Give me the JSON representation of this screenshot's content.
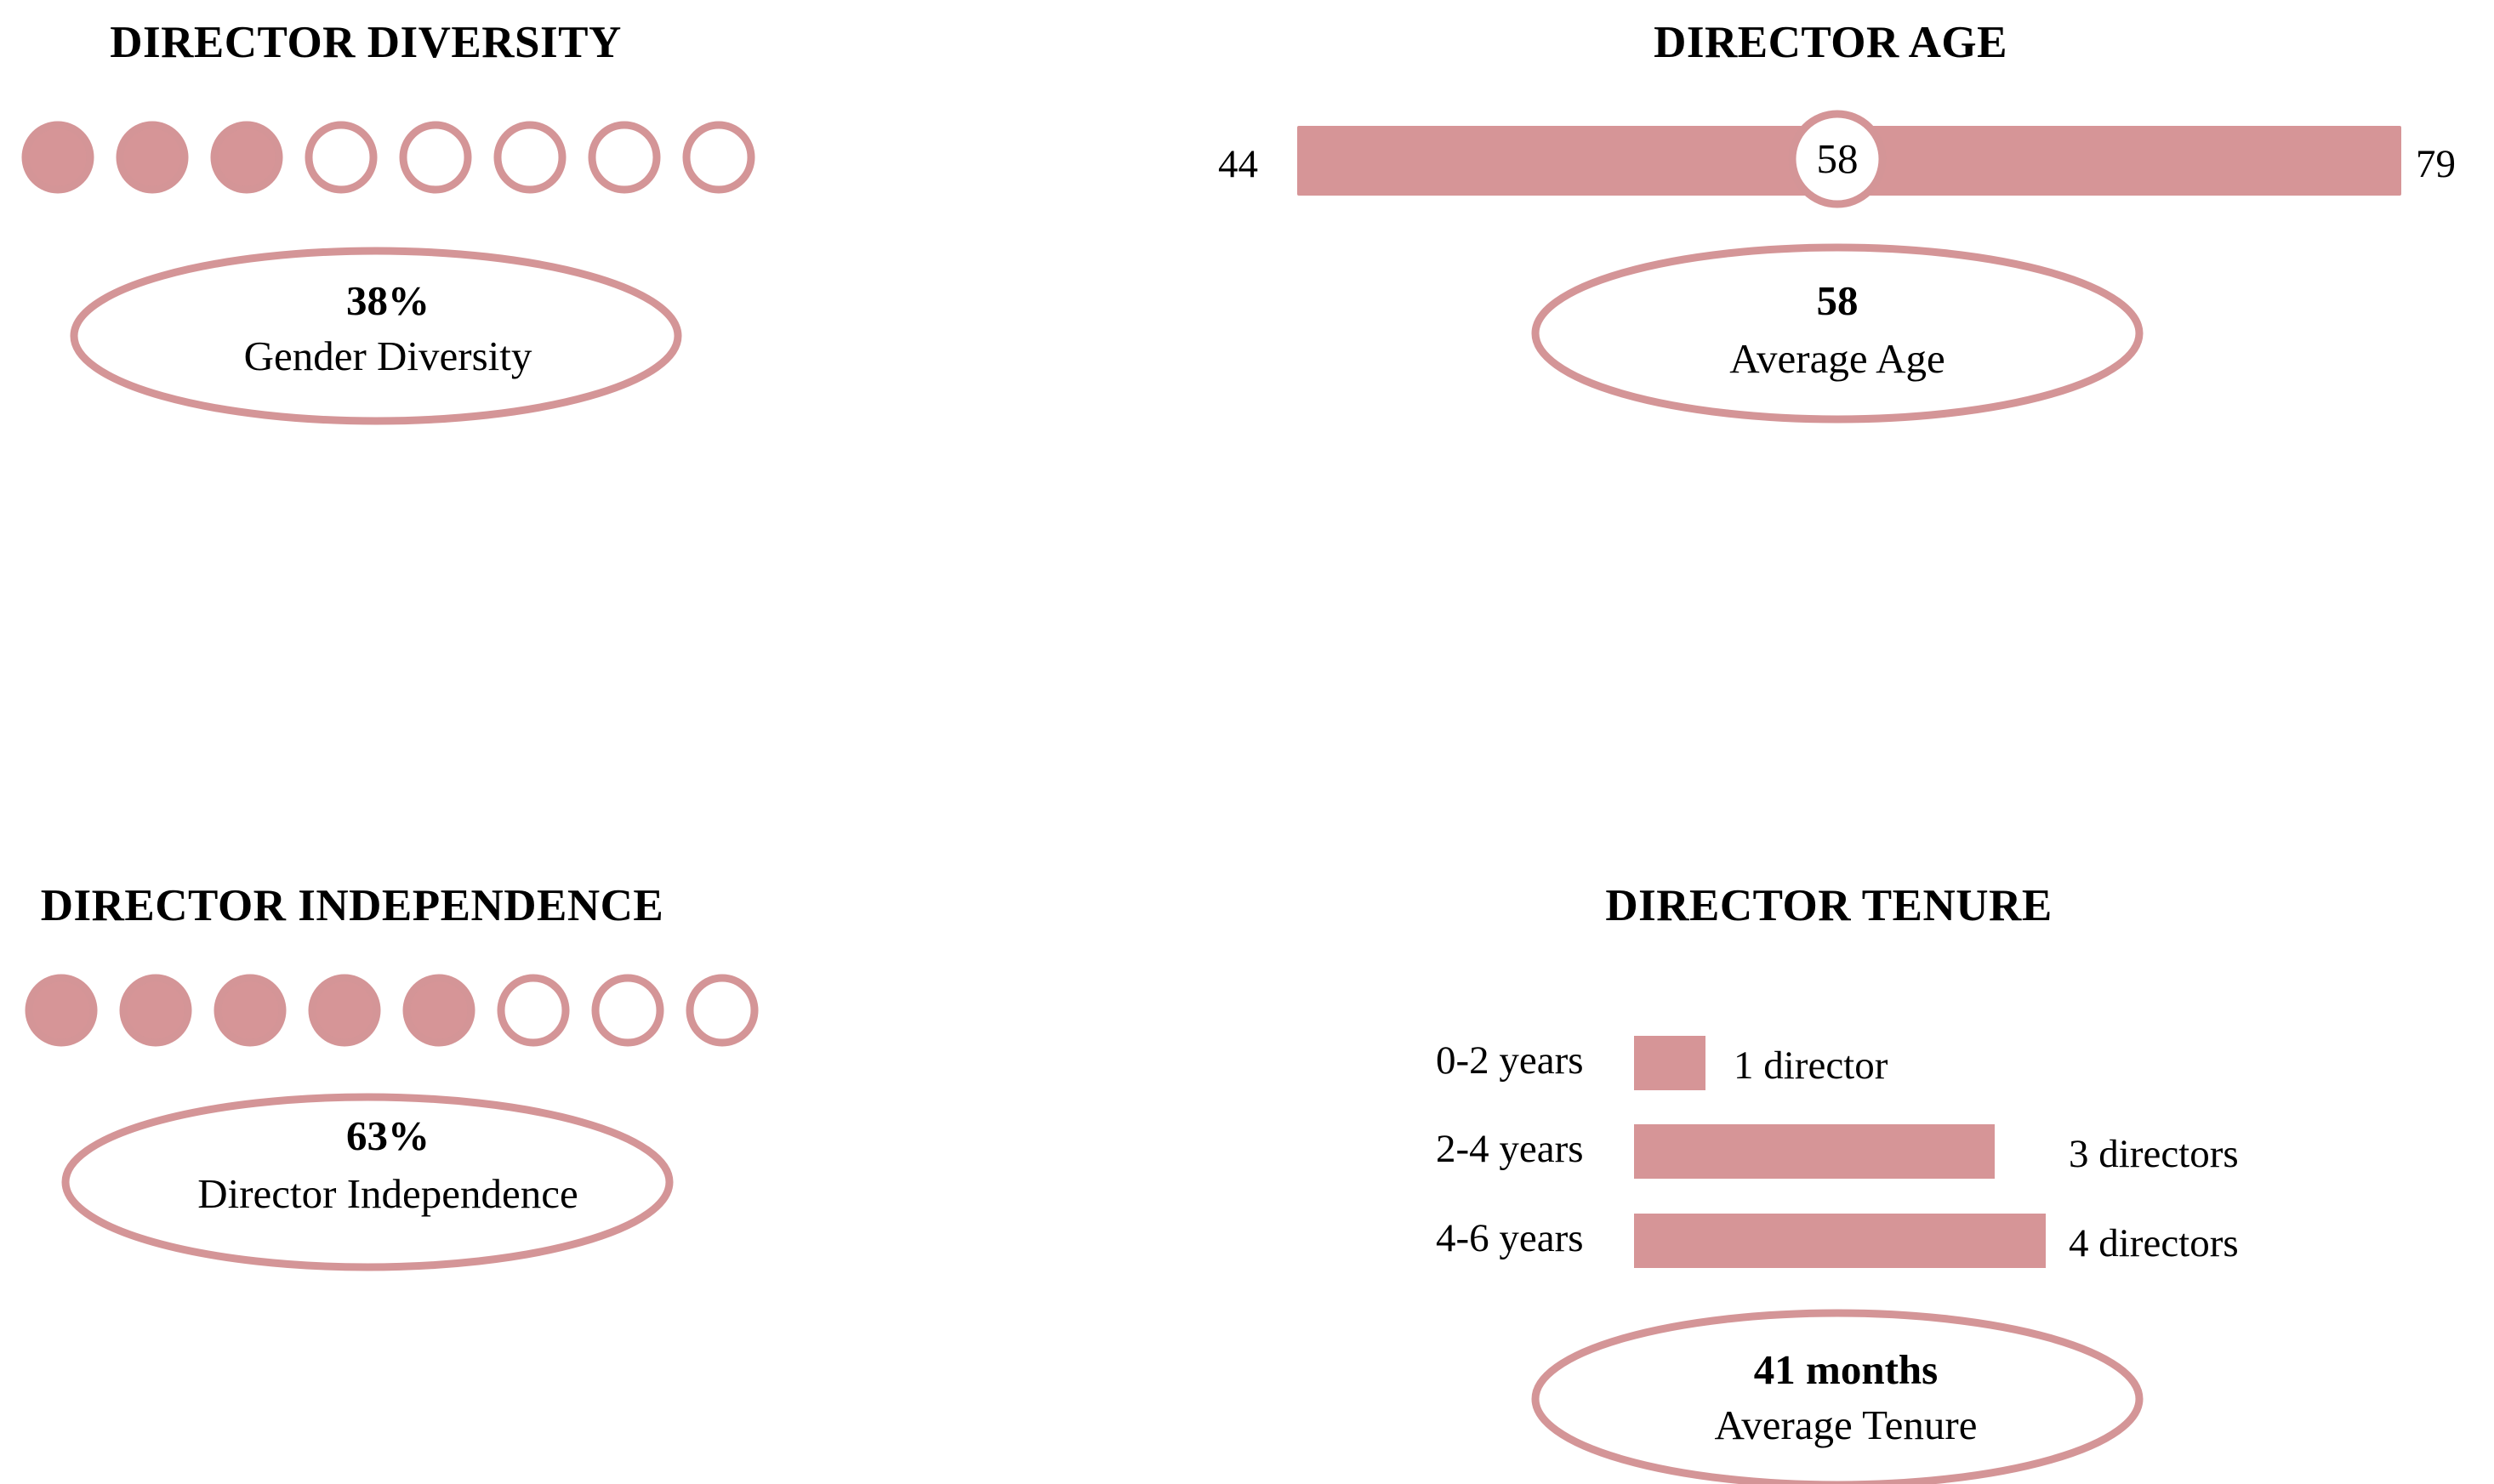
{
  "colors": {
    "accent": "#d69597",
    "outline": "#d49597",
    "text": "#111111"
  },
  "diversity": {
    "title": "DIRECTOR DIVERSITY",
    "total": 8,
    "filled": 3,
    "value": "38%",
    "label": "Gender Diversity"
  },
  "age": {
    "title": "DIRECTOR AGE",
    "min_label": "44",
    "max_label": "79",
    "marker_label": "58",
    "value": "58",
    "label": "Average Age"
  },
  "independence": {
    "title": "DIRECTOR INDEPENDENCE",
    "total": 8,
    "filled": 5,
    "value": "63%",
    "label": "Director Independence"
  },
  "tenure": {
    "title": "DIRECTOR TENURE",
    "rows": [
      {
        "category": "0-2 years",
        "count": 1,
        "count_label": "1 director"
      },
      {
        "category": "2-4 years",
        "count": 3,
        "count_label": "3 directors"
      },
      {
        "category": "4-6 years",
        "count": 4,
        "count_label": "4 directors"
      }
    ],
    "value": "41 months",
    "label": "Average Tenure"
  },
  "chart_data": [
    {
      "type": "other",
      "title": "DIRECTOR DIVERSITY",
      "filled": 3,
      "total": 8,
      "value_label": "38%",
      "caption": "Gender Diversity"
    },
    {
      "type": "bar",
      "title": "DIRECTOR AGE",
      "range": [
        44,
        79
      ],
      "marker": 58,
      "value_label": "58",
      "caption": "Average Age"
    },
    {
      "type": "other",
      "title": "DIRECTOR INDEPENDENCE",
      "filled": 5,
      "total": 8,
      "value_label": "63%",
      "caption": "Director Independence"
    },
    {
      "type": "bar",
      "title": "DIRECTOR TENURE",
      "categories": [
        "0-2 years",
        "2-4 years",
        "4-6 years"
      ],
      "values": [
        1,
        3,
        4
      ],
      "value_label": "41 months",
      "caption": "Average Tenure"
    }
  ]
}
